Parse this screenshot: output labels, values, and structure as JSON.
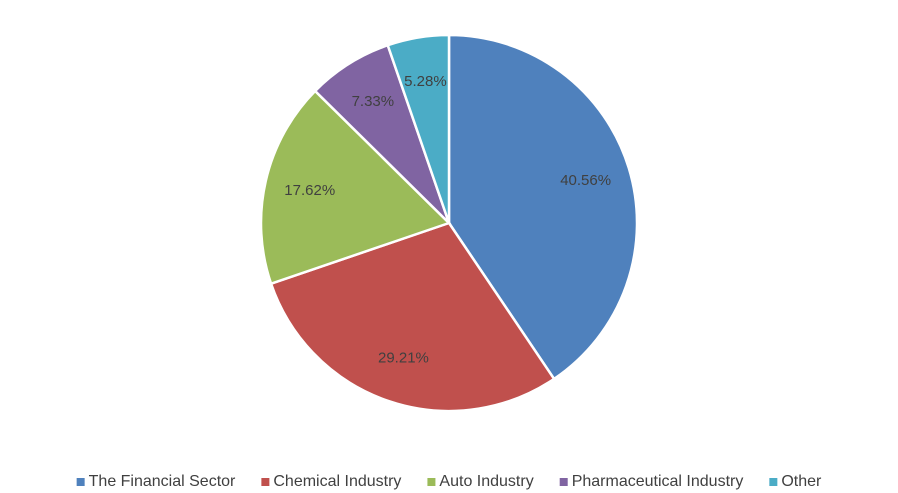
{
  "chart_data": {
    "type": "pie",
    "categories": [
      "The Financial Sector",
      "Chemical Industry",
      "Auto Industry",
      "Pharmaceutical Industry",
      "Other"
    ],
    "values": [
      40.56,
      29.21,
      17.62,
      7.33,
      5.28
    ],
    "value_labels": [
      "40.56%",
      "29.21%",
      "17.62%",
      "7.33%",
      "5.28%"
    ],
    "colors": [
      "#4f81bd",
      "#c0504d",
      "#9bbb59",
      "#8064a2",
      "#4bacc6"
    ],
    "legend": "bottom"
  }
}
